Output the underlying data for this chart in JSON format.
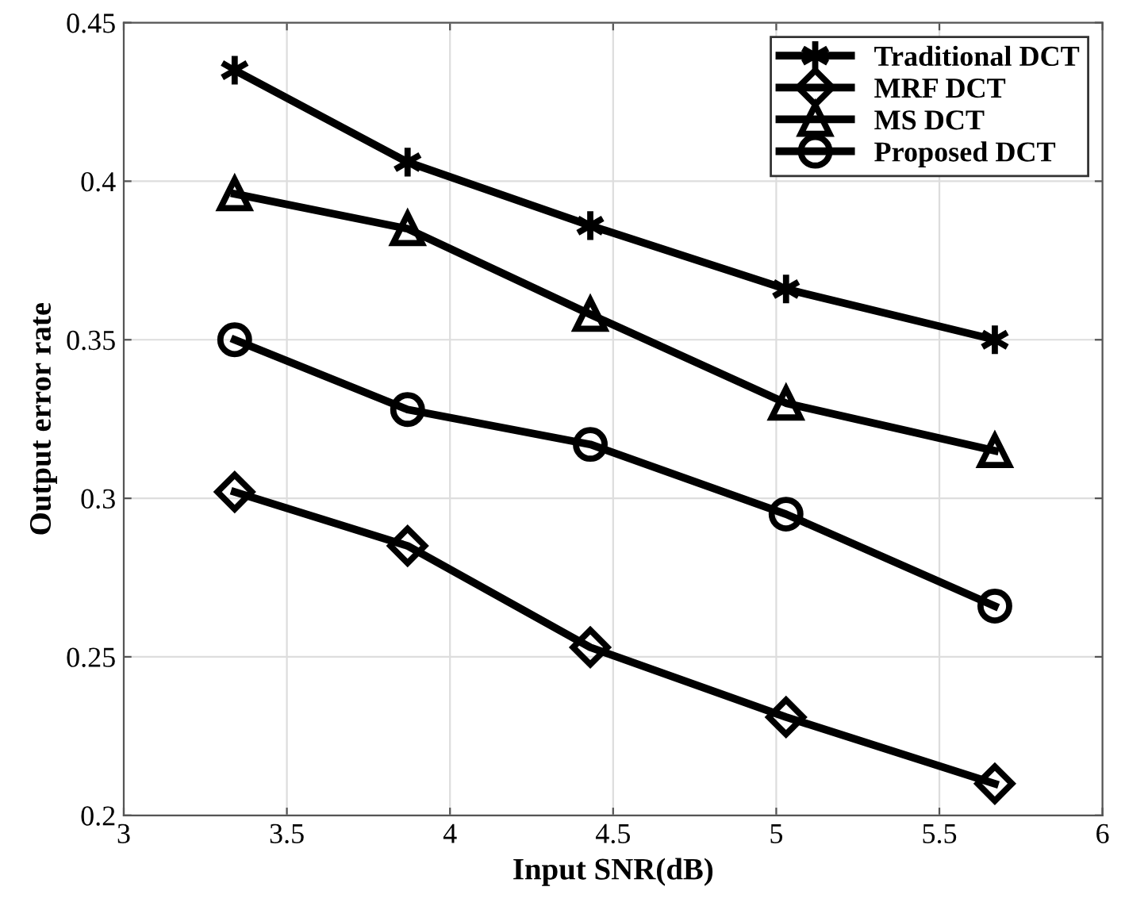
{
  "chart_data": {
    "type": "line",
    "xlabel": "Input SNR(dB)",
    "ylabel": "Output error rate",
    "x": [
      3.34,
      3.87,
      4.43,
      5.03,
      5.67
    ],
    "series": [
      {
        "name": "Traditional DCT",
        "color": "#000000",
        "marker": "cross",
        "values": [
          0.435,
          0.406,
          0.386,
          0.366,
          0.35
        ]
      },
      {
        "name": "MRF DCT",
        "color": "#000000",
        "marker": "diamond",
        "values": [
          0.302,
          0.285,
          0.253,
          0.231,
          0.21
        ]
      },
      {
        "name": "MS DCT",
        "color": "#000000",
        "marker": "triangle",
        "values": [
          0.396,
          0.385,
          0.358,
          0.33,
          0.315
        ]
      },
      {
        "name": "Proposed DCT",
        "color": "#000000",
        "marker": "circle",
        "values": [
          0.35,
          0.328,
          0.317,
          0.295,
          0.266
        ]
      }
    ],
    "xlim": [
      3,
      6
    ],
    "ylim": [
      0.2,
      0.45
    ],
    "xticks": [
      3,
      3.5,
      4,
      4.5,
      5,
      5.5,
      6
    ],
    "yticks": [
      0.2,
      0.25,
      0.3,
      0.35,
      0.4,
      0.45
    ],
    "grid": true,
    "legend": "top right",
    "line_style": "solid"
  }
}
